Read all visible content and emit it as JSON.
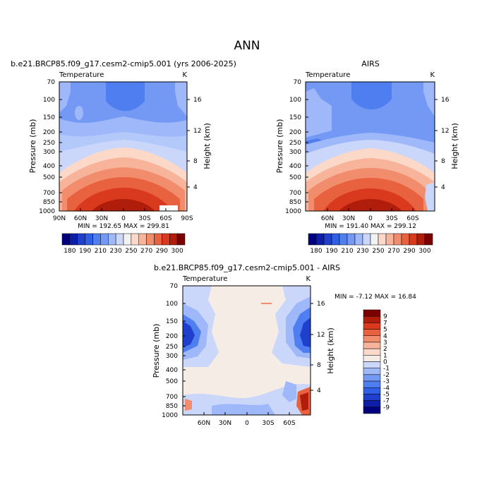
{
  "page_title": "ANN",
  "chart_data": [
    {
      "type": "heatmap",
      "title": "b.e21.BRCP85.f09_g17.cesm2-cmip5.001 (yrs 2006-2025)",
      "left_label": "Temperature",
      "right_label": "K",
      "xlabel": "",
      "ylabel": "Pressure (mb)",
      "y2label": "Height (km)",
      "x_ticks": [
        "90N",
        "60N",
        "30N",
        "0",
        "30S",
        "60S",
        "90S"
      ],
      "y_ticks": [
        "70",
        "100",
        "150",
        "200",
        "250",
        "300",
        "400",
        "500",
        "700",
        "850",
        "1000"
      ],
      "y2_ticks": [
        "16",
        "12",
        "8",
        "4"
      ],
      "stats": "MIN = 192.65   MAX = 299.81",
      "min": 192.65,
      "max": 299.81,
      "levels": [
        180,
        190,
        200,
        210,
        220,
        230,
        240,
        250,
        260,
        270,
        280,
        290,
        300
      ],
      "colorbar_labels": [
        "180",
        "190",
        "210",
        "230",
        "250",
        "270",
        "290",
        "300"
      ]
    },
    {
      "type": "heatmap",
      "title": "AIRS",
      "left_label": "Temperature",
      "right_label": "K",
      "xlabel": "",
      "ylabel": "Pressure (mb)",
      "y2label": "Height (km)",
      "x_ticks": [
        "60N",
        "30N",
        "0",
        "30S",
        "60S"
      ],
      "y_ticks": [
        "70",
        "100",
        "150",
        "200",
        "250",
        "300",
        "400",
        "500",
        "700",
        "850",
        "1000"
      ],
      "y2_ticks": [
        "16",
        "12",
        "8",
        "4"
      ],
      "stats": "MIN = 191.40   MAX = 299.12",
      "min": 191.4,
      "max": 299.12,
      "levels": [
        180,
        190,
        200,
        210,
        220,
        230,
        240,
        250,
        260,
        270,
        280,
        290,
        300
      ],
      "colorbar_labels": [
        "180",
        "190",
        "210",
        "230",
        "250",
        "270",
        "290",
        "300"
      ]
    },
    {
      "type": "heatmap",
      "title": "b.e21.BRCP85.f09_g17.cesm2-cmip5.001 - AIRS",
      "left_label": "Temperature",
      "right_label": "K",
      "xlabel": "",
      "ylabel": "Pressure (mb)",
      "y2label": "Height (km)",
      "x_ticks": [
        "60N",
        "30N",
        "0",
        "30S",
        "60S"
      ],
      "y_ticks": [
        "70",
        "100",
        "150",
        "200",
        "250",
        "300",
        "400",
        "500",
        "700",
        "850",
        "1000"
      ],
      "y2_ticks": [
        "16",
        "12",
        "8",
        "4"
      ],
      "stats": "MIN =  -7.12   MAX =  16.84",
      "min": -7.12,
      "max": 16.84,
      "levels": [
        -9,
        -7,
        -5,
        -4,
        -3,
        -2,
        -1,
        0,
        1,
        2,
        3,
        4,
        5,
        7,
        9
      ],
      "colorbar_labels": [
        "9",
        "7",
        "5",
        "4",
        "3",
        "2",
        "1",
        "0",
        "-1",
        "-2",
        "-3",
        "-4",
        "-5",
        "-7",
        "-9"
      ]
    }
  ],
  "colors": {
    "temp_scale": [
      "#00007f",
      "#0c1fa6",
      "#1e40cc",
      "#2f5fe6",
      "#4f7ef0",
      "#7499f5",
      "#9fb8f9",
      "#cad7fb",
      "#f2f2f2",
      "#fbd8c8",
      "#f7b49b",
      "#f18d6d",
      "#e9623f",
      "#d9391d",
      "#b01d0a",
      "#7a0000"
    ],
    "diff_scale": [
      "#00007f",
      "#0c1fa6",
      "#1e40cc",
      "#2f5fe6",
      "#4f7ef0",
      "#7499f5",
      "#9fb8f9",
      "#cad7fb",
      "#f5ece6",
      "#fbd8c8",
      "#f7b49b",
      "#f18d6d",
      "#e9623f",
      "#d9391d",
      "#b01d0a",
      "#7a0000"
    ]
  }
}
